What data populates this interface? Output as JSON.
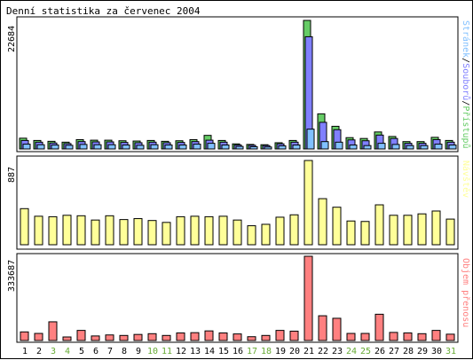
{
  "title": "Denní statistika za červenec 2004",
  "colors": {
    "hits": "#66cc66",
    "files": "#8080ff",
    "pages": "#80c0ff",
    "visits": "#ffff99",
    "kbytes": "#ff8080",
    "weekend_label": "#66aa33",
    "weekday_label": "#000000"
  },
  "chart_data": [
    {
      "type": "bar",
      "name": "hits-files-pages",
      "categories": [
        "1",
        "2",
        "3",
        "4",
        "5",
        "6",
        "7",
        "8",
        "9",
        "10",
        "11",
        "12",
        "13",
        "14",
        "15",
        "16",
        "17",
        "18",
        "19",
        "20",
        "21",
        "22",
        "23",
        "24",
        "25",
        "26",
        "27",
        "28",
        "29",
        "30",
        "31"
      ],
      "max_label": "22684",
      "ymax": 22684,
      "legend": {
        "pages": "Stránek",
        "sep1": "/",
        "files": "Souborů",
        "sep2": "/",
        "hits": "Přístupů"
      },
      "series": [
        {
          "name": "Přístupů",
          "key": "hits",
          "values": [
            1900,
            1500,
            1350,
            1200,
            1650,
            1550,
            1550,
            1450,
            1400,
            1500,
            1350,
            1450,
            1650,
            2400,
            1500,
            900,
            800,
            750,
            1100,
            1500,
            22684,
            6200,
            4000,
            2000,
            1850,
            3000,
            2200,
            1300,
            1300,
            2050,
            1500
          ]
        },
        {
          "name": "Souborů",
          "key": "files",
          "values": [
            1500,
            1200,
            1050,
            950,
            1300,
            1250,
            1250,
            1150,
            1100,
            1200,
            1100,
            1150,
            1300,
            1550,
            1200,
            700,
            650,
            600,
            900,
            1200,
            19800,
            4700,
            3400,
            1600,
            1450,
            2450,
            1850,
            1000,
            1000,
            1650,
            1200
          ]
        },
        {
          "name": "Stránek",
          "key": "pages",
          "values": [
            850,
            750,
            700,
            650,
            800,
            750,
            750,
            700,
            650,
            750,
            700,
            700,
            850,
            1000,
            700,
            450,
            400,
            350,
            550,
            700,
            3500,
            1300,
            1200,
            700,
            600,
            1000,
            800,
            600,
            600,
            850,
            700
          ]
        }
      ]
    },
    {
      "type": "bar",
      "name": "visits",
      "categories": [
        "1",
        "2",
        "3",
        "4",
        "5",
        "6",
        "7",
        "8",
        "9",
        "10",
        "11",
        "12",
        "13",
        "14",
        "15",
        "16",
        "17",
        "18",
        "19",
        "20",
        "21",
        "22",
        "23",
        "24",
        "25",
        "26",
        "27",
        "28",
        "29",
        "30",
        "31"
      ],
      "max_label": "887",
      "ymax": 887,
      "legend": {
        "visits": "Návštěv"
      },
      "series": [
        {
          "name": "Návštěv",
          "key": "visits",
          "values": [
            380,
            300,
            295,
            310,
            305,
            260,
            305,
            265,
            275,
            255,
            235,
            295,
            300,
            295,
            300,
            260,
            200,
            215,
            290,
            315,
            887,
            485,
            395,
            250,
            245,
            420,
            310,
            310,
            325,
            355,
            270
          ]
        }
      ]
    },
    {
      "type": "bar",
      "name": "kbytes",
      "categories": [
        "1",
        "2",
        "3",
        "4",
        "5",
        "6",
        "7",
        "8",
        "9",
        "10",
        "11",
        "12",
        "13",
        "14",
        "15",
        "16",
        "17",
        "18",
        "19",
        "20",
        "21",
        "22",
        "23",
        "24",
        "25",
        "26",
        "27",
        "28",
        "29",
        "30",
        "31"
      ],
      "max_label": "333687",
      "ymax": 333687,
      "legend": {
        "kbytes": "Objem přenosu"
      },
      "series": [
        {
          "name": "Objem přenosu",
          "key": "kbytes",
          "values": [
            34000,
            28000,
            74000,
            14000,
            40000,
            18000,
            22000,
            20000,
            24000,
            27000,
            20000,
            30000,
            31000,
            38000,
            30000,
            26000,
            15000,
            20000,
            40000,
            37000,
            333687,
            98000,
            88000,
            28000,
            28000,
            104000,
            32000,
            30000,
            27000,
            40000,
            25000
          ]
        }
      ]
    }
  ],
  "day_labels": [
    "1",
    "2",
    "3",
    "4",
    "5",
    "6",
    "7",
    "8",
    "9",
    "10",
    "11",
    "12",
    "13",
    "14",
    "15",
    "16",
    "17",
    "18",
    "19",
    "20",
    "21",
    "22",
    "23",
    "24",
    "25",
    "26",
    "27",
    "28",
    "29",
    "30",
    "31"
  ],
  "weekend_days": [
    3,
    4,
    10,
    11,
    17,
    18,
    24,
    25,
    31
  ]
}
